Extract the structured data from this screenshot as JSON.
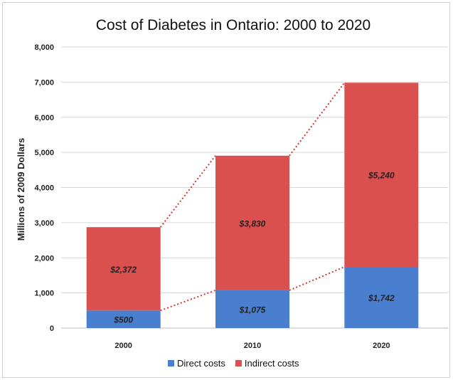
{
  "chart_data": {
    "type": "bar",
    "stacked": true,
    "title": "Cost of Diabetes in Ontario: 2000 to 2020",
    "xlabel": "",
    "ylabel": "Millions of 2009 Dollars",
    "categories": [
      "2000",
      "2010",
      "2020"
    ],
    "ylim": [
      0,
      8000
    ],
    "yticks": [
      0,
      1000,
      2000,
      3000,
      4000,
      5000,
      6000,
      7000,
      8000
    ],
    "ytick_labels": [
      "0",
      "1,000",
      "2,000",
      "3,000",
      "4,000",
      "5,000",
      "6,000",
      "7,000",
      "8,000"
    ],
    "grid": true,
    "legend_position": "bottom",
    "connector_lines": "dotted",
    "series": [
      {
        "name": "Direct costs",
        "color": "#4a7fd0",
        "values": [
          500,
          1075,
          1742
        ],
        "labels": [
          "$500",
          "$1,075",
          "$1,742"
        ]
      },
      {
        "name": "Indirect costs",
        "color": "#d9504e",
        "values": [
          2372,
          3830,
          5240
        ],
        "labels": [
          "$2,372",
          "$3,830",
          "$5,240"
        ]
      }
    ]
  }
}
